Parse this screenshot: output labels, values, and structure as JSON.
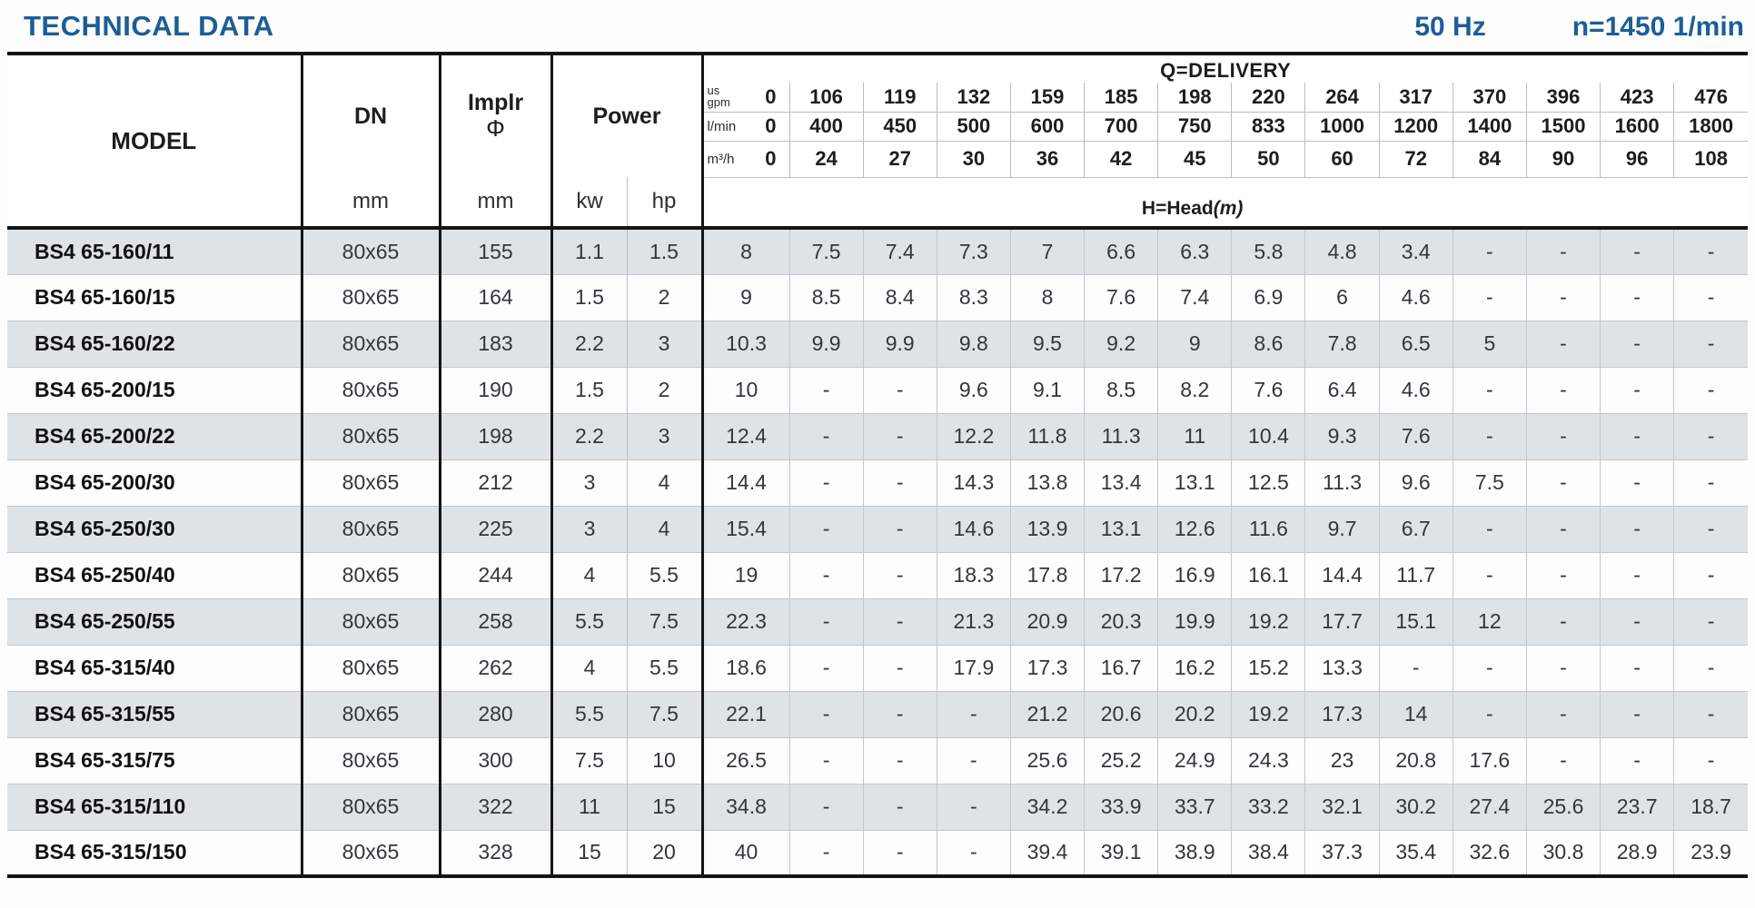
{
  "header": {
    "title": "TECHNICAL DATA",
    "frequency": "50 Hz",
    "speed": "n=1450 1/min"
  },
  "table": {
    "col_headers": {
      "model": "MODEL",
      "dn": "DN",
      "dn_unit": "mm",
      "impeller": "Implr",
      "impeller_phi": "Φ",
      "impeller_unit": "mm",
      "power": "Power",
      "power_kw": "kw",
      "power_hp": "hp",
      "delivery": "Q=DELIVERY",
      "head": "H=Head",
      "head_unit": "(m)",
      "unit_gpm_top": "us",
      "unit_gpm": "gpm",
      "unit_lmin": "l/min",
      "unit_m3h": "m³/h"
    },
    "delivery_rows": {
      "gpm": [
        "0",
        "106",
        "119",
        "132",
        "159",
        "185",
        "198",
        "220",
        "264",
        "317",
        "370",
        "396",
        "423",
        "476"
      ],
      "lmin": [
        "0",
        "400",
        "450",
        "500",
        "600",
        "700",
        "750",
        "833",
        "1000",
        "1200",
        "1400",
        "1500",
        "1600",
        "1800"
      ],
      "m3h": [
        "0",
        "24",
        "27",
        "30",
        "36",
        "42",
        "45",
        "50",
        "60",
        "72",
        "84",
        "90",
        "96",
        "108"
      ]
    },
    "rows": [
      {
        "model": "BS4 65-160/11",
        "dn": "80x65",
        "impeller": "155",
        "kw": "1.1",
        "hp": "1.5",
        "head": [
          "8",
          "7.5",
          "7.4",
          "7.3",
          "7",
          "6.6",
          "6.3",
          "5.8",
          "4.8",
          "3.4",
          "-",
          "-",
          "-",
          "-"
        ]
      },
      {
        "model": "BS4 65-160/15",
        "dn": "80x65",
        "impeller": "164",
        "kw": "1.5",
        "hp": "2",
        "head": [
          "9",
          "8.5",
          "8.4",
          "8.3",
          "8",
          "7.6",
          "7.4",
          "6.9",
          "6",
          "4.6",
          "-",
          "-",
          "-",
          "-"
        ]
      },
      {
        "model": "BS4 65-160/22",
        "dn": "80x65",
        "impeller": "183",
        "kw": "2.2",
        "hp": "3",
        "head": [
          "10.3",
          "9.9",
          "9.9",
          "9.8",
          "9.5",
          "9.2",
          "9",
          "8.6",
          "7.8",
          "6.5",
          "5",
          "-",
          "-",
          "-"
        ]
      },
      {
        "model": "BS4 65-200/15",
        "dn": "80x65",
        "impeller": "190",
        "kw": "1.5",
        "hp": "2",
        "head": [
          "10",
          "-",
          "-",
          "9.6",
          "9.1",
          "8.5",
          "8.2",
          "7.6",
          "6.4",
          "4.6",
          "-",
          "-",
          "-",
          "-"
        ]
      },
      {
        "model": "BS4 65-200/22",
        "dn": "80x65",
        "impeller": "198",
        "kw": "2.2",
        "hp": "3",
        "head": [
          "12.4",
          "-",
          "-",
          "12.2",
          "11.8",
          "11.3",
          "11",
          "10.4",
          "9.3",
          "7.6",
          "-",
          "-",
          "-",
          "-"
        ]
      },
      {
        "model": "BS4 65-200/30",
        "dn": "80x65",
        "impeller": "212",
        "kw": "3",
        "hp": "4",
        "head": [
          "14.4",
          "-",
          "-",
          "14.3",
          "13.8",
          "13.4",
          "13.1",
          "12.5",
          "11.3",
          "9.6",
          "7.5",
          "-",
          "-",
          "-"
        ]
      },
      {
        "model": "BS4 65-250/30",
        "dn": "80x65",
        "impeller": "225",
        "kw": "3",
        "hp": "4",
        "head": [
          "15.4",
          "-",
          "-",
          "14.6",
          "13.9",
          "13.1",
          "12.6",
          "11.6",
          "9.7",
          "6.7",
          "-",
          "-",
          "-",
          "-"
        ]
      },
      {
        "model": "BS4 65-250/40",
        "dn": "80x65",
        "impeller": "244",
        "kw": "4",
        "hp": "5.5",
        "head": [
          "19",
          "-",
          "-",
          "18.3",
          "17.8",
          "17.2",
          "16.9",
          "16.1",
          "14.4",
          "11.7",
          "-",
          "-",
          "-",
          "-"
        ]
      },
      {
        "model": "BS4 65-250/55",
        "dn": "80x65",
        "impeller": "258",
        "kw": "5.5",
        "hp": "7.5",
        "head": [
          "22.3",
          "-",
          "-",
          "21.3",
          "20.9",
          "20.3",
          "19.9",
          "19.2",
          "17.7",
          "15.1",
          "12",
          "-",
          "-",
          "-"
        ]
      },
      {
        "model": "BS4 65-315/40",
        "dn": "80x65",
        "impeller": "262",
        "kw": "4",
        "hp": "5.5",
        "head": [
          "18.6",
          "-",
          "-",
          "17.9",
          "17.3",
          "16.7",
          "16.2",
          "15.2",
          "13.3",
          "-",
          "-",
          "-",
          "-",
          "-"
        ]
      },
      {
        "model": "BS4 65-315/55",
        "dn": "80x65",
        "impeller": "280",
        "kw": "5.5",
        "hp": "7.5",
        "head": [
          "22.1",
          "-",
          "-",
          "-",
          "21.2",
          "20.6",
          "20.2",
          "19.2",
          "17.3",
          "14",
          "-",
          "-",
          "-",
          "-"
        ]
      },
      {
        "model": "BS4 65-315/75",
        "dn": "80x65",
        "impeller": "300",
        "kw": "7.5",
        "hp": "10",
        "head": [
          "26.5",
          "-",
          "-",
          "-",
          "25.6",
          "25.2",
          "24.9",
          "24.3",
          "23",
          "20.8",
          "17.6",
          "-",
          "-",
          "-"
        ]
      },
      {
        "model": "BS4 65-315/110",
        "dn": "80x65",
        "impeller": "322",
        "kw": "11",
        "hp": "15",
        "head": [
          "34.8",
          "-",
          "-",
          "-",
          "34.2",
          "33.9",
          "33.7",
          "33.2",
          "32.1",
          "30.2",
          "27.4",
          "25.6",
          "23.7",
          "18.7"
        ]
      },
      {
        "model": "BS4 65-315/150",
        "dn": "80x65",
        "impeller": "328",
        "kw": "15",
        "hp": "20",
        "head": [
          "40",
          "-",
          "-",
          "-",
          "39.4",
          "39.1",
          "38.9",
          "38.4",
          "37.3",
          "35.4",
          "32.6",
          "30.8",
          "28.9",
          "23.9"
        ]
      }
    ]
  }
}
